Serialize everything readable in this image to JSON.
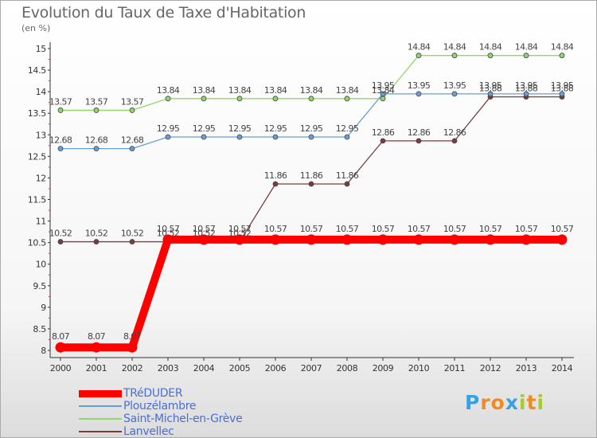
{
  "header": {
    "title": "Evolution du Taux de Taxe d'Habitation",
    "unit": "(en %)"
  },
  "chart_data": {
    "type": "line",
    "title": "Evolution du Taux de Taxe d'Habitation",
    "ylabel": "(en %)",
    "xlabel": "",
    "x": [
      "2000",
      "2001",
      "2002",
      "2003",
      "2004",
      "2005",
      "2006",
      "2007",
      "2008",
      "2009",
      "2010",
      "2011",
      "2012",
      "2013",
      "2014"
    ],
    "y_ticks": [
      "8",
      "8.5",
      "9",
      "9.5",
      "10",
      "10.5",
      "11",
      "11.5",
      "12",
      "12.5",
      "13",
      "13.5",
      "14",
      "14.5",
      "15"
    ],
    "ylim": [
      8,
      15
    ],
    "grid": false,
    "legend_position": "bottom-left",
    "series": [
      {
        "name": "TRéDUDER",
        "color": "#ff0000",
        "values": [
          8.07,
          8.07,
          8.07,
          10.57,
          10.57,
          10.57,
          10.57,
          10.57,
          10.57,
          10.57,
          10.57,
          10.57,
          10.57,
          10.57,
          10.57
        ],
        "labels": [
          "8.07",
          "8.07",
          "8.07",
          "10.57",
          "10.57",
          "10.57",
          "10.57",
          "10.57",
          "10.57",
          "10.57",
          "10.57",
          "10.57",
          "10.57",
          "10.57",
          "10.57"
        ]
      },
      {
        "name": "Plouzélambre",
        "color": "#6a9ed2",
        "values": [
          12.68,
          12.68,
          12.68,
          12.95,
          12.95,
          12.95,
          12.95,
          12.95,
          12.95,
          13.95,
          13.95,
          13.95,
          13.95,
          13.95,
          13.95
        ],
        "labels": [
          "12.68",
          "12.68",
          "12.68",
          "12.95",
          "12.95",
          "12.95",
          "12.95",
          "12.95",
          "12.95",
          "13.95",
          "13.95",
          "13.95",
          "13.95",
          "13.95",
          "13.95"
        ]
      },
      {
        "name": "Saint-Michel-en-Grève",
        "color": "#90d86a",
        "values": [
          13.57,
          13.57,
          13.57,
          13.84,
          13.84,
          13.84,
          13.84,
          13.84,
          13.84,
          13.84,
          14.84,
          14.84,
          14.84,
          14.84,
          14.84
        ],
        "labels": [
          "13.57",
          "13.57",
          "13.57",
          "13.84",
          "13.84",
          "13.84",
          "13.84",
          "13.84",
          "13.84",
          "13.84",
          "14.84",
          "14.84",
          "14.84",
          "14.84",
          "14.84"
        ]
      },
      {
        "name": "Lanvellec",
        "color": "#7a3c3c",
        "values": [
          10.52,
          10.52,
          10.52,
          10.52,
          10.52,
          10.52,
          11.86,
          11.86,
          11.86,
          12.86,
          12.86,
          12.86,
          13.88,
          13.88,
          13.88
        ],
        "labels": [
          "10.52",
          "10.52",
          "10.52",
          "10.52",
          "10.52",
          "10.52",
          "11.86",
          "11.86",
          "11.86",
          "12.86",
          "12.86",
          "12.86",
          "13.88",
          "13.88",
          "13.88"
        ]
      }
    ]
  },
  "legend": {
    "items": [
      {
        "label": "TRéDUDER",
        "color": "#ff0000"
      },
      {
        "label": "Plouzélambre",
        "color": "#6a9ed2"
      },
      {
        "label": "Saint-Michel-en-Grève",
        "color": "#90d86a"
      },
      {
        "label": "Lanvellec",
        "color": "#7a3c3c"
      }
    ]
  },
  "logo": {
    "letters": [
      "P",
      "r",
      "o",
      "x",
      "i",
      "t",
      "i"
    ],
    "colors": [
      "#3aa1e0",
      "#f08a24",
      "#f08a24",
      "#3aa1e0",
      "#a8c92d",
      "#f08a24",
      "#a8c92d"
    ]
  }
}
